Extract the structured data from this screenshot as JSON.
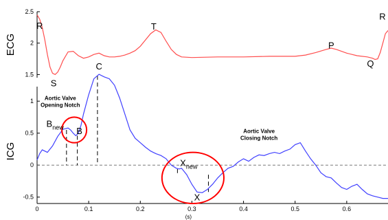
{
  "chart_data": {
    "type": "line",
    "x_axis": {
      "label": "(s)",
      "range": [
        0,
        0.68
      ],
      "ticks": [
        0,
        0.1,
        0.2,
        0.3,
        0.4,
        0.5,
        0.6
      ],
      "tick_labels": [
        "0",
        "0.1",
        "0.2",
        "0.3",
        "0.4",
        "0.5",
        "0.6"
      ]
    },
    "ecg": {
      "ylabel": "ECG",
      "color": "#ff4d4d",
      "ylim": [
        1.45,
        2.5
      ],
      "ticks": [
        1.5,
        2,
        2.5
      ],
      "tick_labels": [
        "1.5",
        "2",
        "2.5"
      ],
      "x": [
        0,
        0.005,
        0.01,
        0.015,
        0.02,
        0.025,
        0.03,
        0.035,
        0.04,
        0.045,
        0.05,
        0.06,
        0.07,
        0.08,
        0.09,
        0.1,
        0.11,
        0.12,
        0.13,
        0.14,
        0.15,
        0.16,
        0.17,
        0.18,
        0.19,
        0.2,
        0.21,
        0.22,
        0.23,
        0.24,
        0.25,
        0.26,
        0.27,
        0.28,
        0.3,
        0.35,
        0.4,
        0.45,
        0.5,
        0.52,
        0.54,
        0.56,
        0.57,
        0.58,
        0.6,
        0.62,
        0.64,
        0.65,
        0.655,
        0.66,
        0.665,
        0.67,
        0.675,
        0.68
      ],
      "y": [
        2.45,
        2.38,
        2.25,
        2.05,
        1.82,
        1.62,
        1.52,
        1.5,
        1.54,
        1.62,
        1.72,
        1.86,
        1.87,
        1.8,
        1.76,
        1.78,
        1.82,
        1.84,
        1.8,
        1.78,
        1.78,
        1.79,
        1.81,
        1.84,
        1.88,
        1.95,
        2.05,
        2.15,
        2.21,
        2.17,
        2.03,
        1.9,
        1.82,
        1.78,
        1.77,
        1.78,
        1.78,
        1.79,
        1.79,
        1.81,
        1.85,
        1.9,
        1.92,
        1.9,
        1.84,
        1.8,
        1.78,
        1.76,
        1.74,
        1.75,
        1.85,
        2.0,
        2.15,
        2.2
      ],
      "labels": [
        {
          "text": "R",
          "x": 0.005,
          "y": 2.28
        },
        {
          "text": "S",
          "x": 0.032,
          "y": 1.37
        },
        {
          "text": "T",
          "x": 0.226,
          "y": 2.27
        },
        {
          "text": "P",
          "x": 0.57,
          "y": 1.97
        },
        {
          "text": "Q",
          "x": 0.646,
          "y": 1.68
        },
        {
          "text": "R",
          "x": 0.675,
          "y": 2.43
        }
      ]
    },
    "icg": {
      "ylabel": "ICG",
      "color": "#4040ff",
      "ylim": [
        -0.6,
        1.55
      ],
      "ticks": [
        -0.5,
        0,
        0.5,
        1
      ],
      "tick_labels": [
        "-0.5",
        "0",
        "0.5",
        "1"
      ],
      "x": [
        0,
        0.005,
        0.01,
        0.02,
        0.03,
        0.04,
        0.05,
        0.06,
        0.065,
        0.07,
        0.075,
        0.08,
        0.085,
        0.09,
        0.1,
        0.11,
        0.12,
        0.13,
        0.14,
        0.15,
        0.16,
        0.17,
        0.18,
        0.19,
        0.2,
        0.21,
        0.22,
        0.23,
        0.24,
        0.25,
        0.26,
        0.27,
        0.275,
        0.28,
        0.29,
        0.3,
        0.31,
        0.32,
        0.33,
        0.34,
        0.35,
        0.36,
        0.37,
        0.38,
        0.39,
        0.4,
        0.41,
        0.42,
        0.43,
        0.44,
        0.45,
        0.46,
        0.47,
        0.48,
        0.49,
        0.5,
        0.51,
        0.52,
        0.53,
        0.54,
        0.55,
        0.56,
        0.57,
        0.58,
        0.59,
        0.6,
        0.61,
        0.62,
        0.63,
        0.64,
        0.65,
        0.66,
        0.67,
        0.68
      ],
      "y": [
        0.08,
        0.18,
        0.24,
        0.2,
        0.3,
        0.45,
        0.56,
        0.58,
        0.55,
        0.5,
        0.46,
        0.5,
        0.62,
        0.8,
        1.1,
        1.35,
        1.42,
        1.38,
        1.35,
        1.25,
        1.05,
        0.8,
        0.55,
        0.42,
        0.35,
        0.28,
        0.22,
        0.18,
        0.15,
        0.1,
        0.0,
        -0.05,
        -0.06,
        -0.05,
        -0.15,
        -0.3,
        -0.42,
        -0.43,
        -0.38,
        -0.3,
        -0.2,
        -0.12,
        -0.05,
        -0.02,
        0.05,
        0.1,
        0.06,
        0.12,
        0.16,
        0.15,
        0.18,
        0.2,
        0.18,
        0.22,
        0.25,
        0.32,
        0.35,
        0.22,
        0.1,
        0.0,
        -0.12,
        -0.18,
        -0.2,
        -0.28,
        -0.35,
        -0.38,
        -0.33,
        -0.3,
        -0.38,
        -0.45,
        -0.48,
        -0.5,
        -0.52,
        -0.52
      ],
      "markers": [
        {
          "text": "C",
          "x": 0.12,
          "y": 1.55
        },
        {
          "text": "B",
          "x": 0.082,
          "y": 0.54
        },
        {
          "text": "B",
          "sub": "new",
          "x": 0.018,
          "y": 0.65
        },
        {
          "text": "X",
          "sub": "new",
          "x": 0.277,
          "y": 0.04
        },
        {
          "text": "X",
          "x": 0.31,
          "y": -0.5
        }
      ],
      "dashed_markers": [
        {
          "x": 0.057,
          "y_top": 0.55,
          "y_bottom": 0.0
        },
        {
          "x": 0.078,
          "y_top": 0.46,
          "y_bottom": 0.0
        },
        {
          "x": 0.117,
          "y_top": 1.4,
          "y_bottom": 0.0
        },
        {
          "x": 0.272,
          "y_top": -0.06,
          "y_bottom": -0.14
        },
        {
          "x": 0.332,
          "y_top": -0.15,
          "y_bottom": -0.42
        }
      ],
      "circles": [
        {
          "cx": 0.072,
          "cy": 0.55,
          "rx": 0.024,
          "ry": 0.2
        },
        {
          "cx": 0.302,
          "cy": -0.2,
          "rx": 0.06,
          "ry": 0.4
        }
      ],
      "annotations": [
        {
          "lines": [
            "Aortic Valve",
            "Opening Notch"
          ],
          "x": 0.045,
          "y": 1.02
        },
        {
          "lines": [
            "Aortic Valve",
            "Closing Notch"
          ],
          "x": 0.43,
          "y": 0.5
        }
      ],
      "circle_color": "#ff0000"
    }
  }
}
